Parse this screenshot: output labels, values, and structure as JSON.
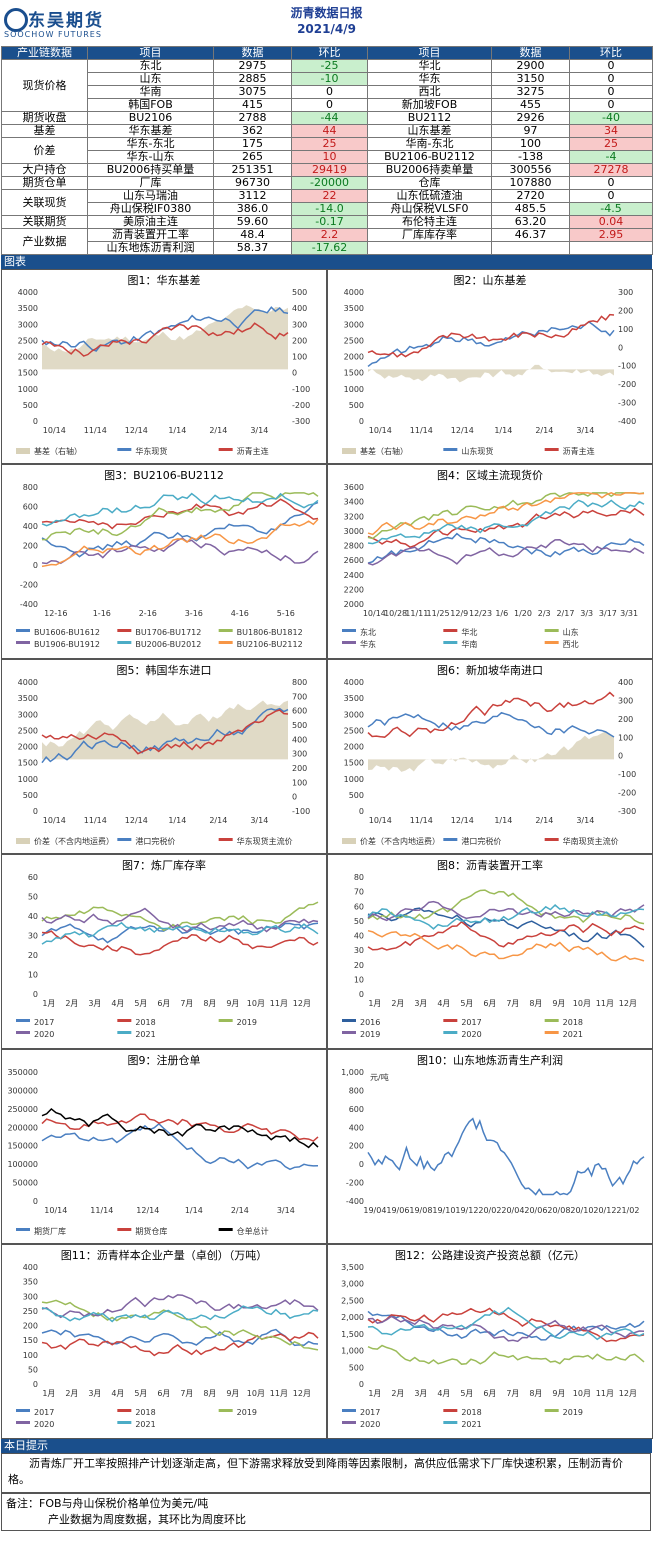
{
  "header": {
    "logo_cn": "东吴期货",
    "logo_en": "SOOCHOW FUTURES",
    "title": "沥青数据日报",
    "date": "2021/4/9"
  },
  "table": {
    "headers": [
      "产业链数据",
      "项目",
      "数据",
      "环比",
      "项目",
      "数据",
      "环比"
    ],
    "rows": [
      {
        "cat": "现货价格",
        "span": 4,
        "a": "东北",
        "b": "2975",
        "c": "-25",
        "cc": "g",
        "d": "华北",
        "e": "2900",
        "f": "0",
        "fc": ""
      },
      {
        "a": "山东",
        "b": "2885",
        "c": "-10",
        "cc": "g",
        "d": "华东",
        "e": "3150",
        "f": "0",
        "fc": ""
      },
      {
        "a": "华南",
        "b": "3075",
        "c": "0",
        "cc": "",
        "d": "西北",
        "e": "3275",
        "f": "0",
        "fc": ""
      },
      {
        "a": "韩国FOB",
        "b": "415",
        "c": "0",
        "cc": "",
        "d": "新加坡FOB",
        "e": "455",
        "f": "0",
        "fc": ""
      },
      {
        "cat": "期货收盘",
        "span": 1,
        "a": "BU2106",
        "b": "2788",
        "c": "-44",
        "cc": "g",
        "d": "BU2112",
        "e": "2926",
        "f": "-40",
        "fc": "g"
      },
      {
        "cat": "基差",
        "span": 1,
        "a": "华东基差",
        "b": "362",
        "c": "44",
        "cc": "r",
        "d": "山东基差",
        "e": "97",
        "f": "34",
        "fc": "r"
      },
      {
        "cat": "价差",
        "span": 2,
        "a": "华东-东北",
        "b": "175",
        "c": "25",
        "cc": "r",
        "d": "华南-东北",
        "e": "100",
        "f": "25",
        "fc": "r"
      },
      {
        "a": "华东-山东",
        "b": "265",
        "c": "10",
        "cc": "r",
        "d": "BU2106-BU2112",
        "e": "-138",
        "f": "-4",
        "fc": "g"
      },
      {
        "cat": "大户持仓",
        "span": 1,
        "a": "BU2006持买单量",
        "b": "251351",
        "c": "29419",
        "cc": "r",
        "d": "BU2006持卖单量",
        "e": "300556",
        "f": "27278",
        "fc": "r"
      },
      {
        "cat": "期货仓单",
        "span": 1,
        "a": "厂库",
        "b": "96730",
        "c": "-20000",
        "cc": "g",
        "d": "仓库",
        "e": "107880",
        "f": "0",
        "fc": ""
      },
      {
        "cat": "关联现货",
        "span": 2,
        "a": "山东马瑞油",
        "b": "3112",
        "c": "22",
        "cc": "r",
        "d": "山东低硫渣油",
        "e": "2720",
        "f": "0",
        "fc": ""
      },
      {
        "a": "舟山保税IF0380",
        "b": "386.0",
        "c": "-14.0",
        "cc": "g",
        "d": "舟山保税VLSF0",
        "e": "485.5",
        "f": "-4.5",
        "fc": "g"
      },
      {
        "cat": "关联期货",
        "span": 1,
        "a": "美原油主连",
        "b": "59.60",
        "c": "-0.17",
        "cc": "g",
        "d": "布伦特主连",
        "e": "63.20",
        "f": "0.04",
        "fc": "r"
      },
      {
        "cat": "产业数据",
        "span": 2,
        "a": "沥青装置开工率",
        "b": "48.4",
        "c": "2.2",
        "cc": "r",
        "d": "厂库库存率",
        "e": "46.37",
        "f": "2.95",
        "fc": "r"
      },
      {
        "a": "山东地炼沥青利润",
        "b": "58.37",
        "c": "-17.62",
        "cc": "g",
        "d": "",
        "e": "",
        "f": "",
        "fc": ""
      }
    ]
  },
  "charts_label": "图表",
  "charts": [
    {
      "title": "图1：华东基差",
      "type": "line",
      "xticks": [
        "10/14",
        "11/14",
        "12/14",
        "1/14",
        "2/14",
        "3/14"
      ],
      "yl": [
        "4000",
        "3500",
        "3000",
        "2500",
        "2000",
        "1500",
        "1000",
        "500",
        "0"
      ],
      "yr": [
        "500",
        "400",
        "300",
        "200",
        "100",
        "0",
        "-100",
        "-200",
        "-300"
      ],
      "legend": [
        {
          "name": "基差（右轴）",
          "color": "#d8d1b8"
        },
        {
          "name": "华东现货",
          "color": "#4a7fc1"
        },
        {
          "name": "沥青主连",
          "color": "#c9413c"
        }
      ]
    },
    {
      "title": "图2：山东基差",
      "type": "line",
      "xticks": [
        "10/14",
        "11/14",
        "12/14",
        "1/14",
        "2/14",
        "3/14"
      ],
      "yl": [
        "4000",
        "3500",
        "3000",
        "2500",
        "2000",
        "1500",
        "1000",
        "500",
        "0"
      ],
      "yr": [
        "300",
        "200",
        "100",
        "0",
        "-100",
        "-200",
        "-300",
        "-400"
      ],
      "legend": [
        {
          "name": "基差（右轴）",
          "color": "#d8d1b8"
        },
        {
          "name": "山东现货",
          "color": "#4a7fc1"
        },
        {
          "name": "沥青主连",
          "color": "#c9413c"
        }
      ]
    },
    {
      "title": "图3：BU2106-BU2112",
      "type": "line",
      "xticks": [
        "12-16",
        "1-16",
        "2-16",
        "3-16",
        "4-16",
        "5-16"
      ],
      "yl": [
        "800",
        "600",
        "400",
        "200",
        "0",
        "-200",
        "-400"
      ],
      "legend": [
        {
          "name": "BU1606-BU1612",
          "color": "#4a7fc1"
        },
        {
          "name": "BU1706-BU1712",
          "color": "#c9413c"
        },
        {
          "name": "BU1806-BU1812",
          "color": "#9bbb59"
        },
        {
          "name": "BU1906-BU1912",
          "color": "#8064a2"
        },
        {
          "name": "BU2006-BU2012",
          "color": "#4bacc6"
        },
        {
          "name": "BU2106-BU2112",
          "color": "#f79646"
        }
      ]
    },
    {
      "title": "图4：区域主流现货价",
      "type": "line",
      "xticks": [
        "10/14",
        "10/28",
        "11/11",
        "11/25",
        "12/9",
        "12/23",
        "1/6",
        "1/20",
        "2/3",
        "2/17",
        "3/3",
        "3/17",
        "3/31"
      ],
      "yl": [
        "3600",
        "3400",
        "3200",
        "3000",
        "2800",
        "2600",
        "2400",
        "2200",
        "2000"
      ],
      "legend": [
        {
          "name": "东北",
          "color": "#4a7fc1"
        },
        {
          "name": "华北",
          "color": "#c9413c"
        },
        {
          "name": "山东",
          "color": "#9bbb59"
        },
        {
          "name": "华东",
          "color": "#8064a2"
        },
        {
          "name": "华南",
          "color": "#4bacc6"
        },
        {
          "name": "西北",
          "color": "#f79646"
        }
      ]
    },
    {
      "title": "图5：韩国华东进口",
      "type": "line",
      "xticks": [
        "10/14",
        "11/14",
        "12/14",
        "1/14",
        "2/14",
        "3/14"
      ],
      "yl": [
        "4000",
        "3500",
        "3000",
        "2500",
        "2000",
        "1500",
        "1000",
        "500",
        "0"
      ],
      "yr": [
        "800",
        "700",
        "600",
        "500",
        "400",
        "300",
        "200",
        "100",
        "0",
        "-100"
      ],
      "legend": [
        {
          "name": "价差（不含内地运费）",
          "color": "#d8d1b8"
        },
        {
          "name": "港口完税价",
          "color": "#4a7fc1"
        },
        {
          "name": "华东现货主流价",
          "color": "#c9413c"
        }
      ]
    },
    {
      "title": "图6：新加坡华南进口",
      "type": "line",
      "xticks": [
        "10/14",
        "11/14",
        "12/14",
        "1/14",
        "2/14",
        "3/14"
      ],
      "yl": [
        "4000",
        "3500",
        "3000",
        "2500",
        "2000",
        "1500",
        "1000",
        "500",
        "0"
      ],
      "yr": [
        "400",
        "300",
        "200",
        "100",
        "0",
        "-100",
        "-200",
        "-300"
      ],
      "legend": [
        {
          "name": "价差（不含内地运费）",
          "color": "#d8d1b8"
        },
        {
          "name": "港口完税价",
          "color": "#4a7fc1"
        },
        {
          "name": "华南现货主流价",
          "color": "#c9413c"
        }
      ]
    },
    {
      "title": "图7：炼厂库存率",
      "type": "line",
      "xticks": [
        "1月",
        "2月",
        "3月",
        "4月",
        "5月",
        "6月",
        "7月",
        "8月",
        "9月",
        "10月",
        "11月",
        "12月"
      ],
      "yl": [
        "60",
        "50",
        "40",
        "30",
        "20",
        "10",
        "0"
      ],
      "legend": [
        {
          "name": "2017",
          "color": "#4a7fc1"
        },
        {
          "name": "2018",
          "color": "#c9413c"
        },
        {
          "name": "2019",
          "color": "#9bbb59"
        },
        {
          "name": "2020",
          "color": "#8064a2"
        },
        {
          "name": "2021",
          "color": "#4bacc6"
        }
      ]
    },
    {
      "title": "图8：沥青装置开工率",
      "type": "line",
      "xticks": [
        "1月",
        "2月",
        "3月",
        "4月",
        "5月",
        "6月",
        "7月",
        "8月",
        "9月",
        "10月",
        "11月",
        "12月"
      ],
      "yl": [
        "80",
        "70",
        "60",
        "50",
        "40",
        "30",
        "20",
        "10",
        "0"
      ],
      "legend": [
        {
          "name": "2016",
          "color": "#2e5f9e"
        },
        {
          "name": "2017",
          "color": "#c9413c"
        },
        {
          "name": "2018",
          "color": "#9bbb59"
        },
        {
          "name": "2019",
          "color": "#8064a2"
        },
        {
          "name": "2020",
          "color": "#4bacc6"
        },
        {
          "name": "2021",
          "color": "#f79646"
        }
      ]
    },
    {
      "title": "图9：注册仓单",
      "type": "line",
      "xticks": [
        "10/14",
        "11/14",
        "12/14",
        "1/14",
        "2/14",
        "3/14"
      ],
      "yl": [
        "350000",
        "300000",
        "250000",
        "200000",
        "150000",
        "100000",
        "50000",
        "0"
      ],
      "legend": [
        {
          "name": "期货厂库",
          "color": "#4a7fc1"
        },
        {
          "name": "期货仓库",
          "color": "#c9413c"
        },
        {
          "name": "仓单总计",
          "color": "#000000"
        }
      ]
    },
    {
      "title": "图10：山东地炼沥青生产利润",
      "type": "line",
      "unit": "元/吨",
      "xticks": [
        "19/04",
        "19/06",
        "19/08",
        "19/10",
        "19/12",
        "20/02",
        "20/04",
        "20/06",
        "20/08",
        "20/10",
        "20/12",
        "21/02"
      ],
      "yl": [
        "1,000",
        "800",
        "600",
        "400",
        "200",
        "0",
        "-200",
        "-400"
      ],
      "legend": []
    },
    {
      "title": "图11：沥青样本企业产量（卓创）（万吨）",
      "type": "line",
      "xticks": [
        "1月",
        "2月",
        "3月",
        "4月",
        "5月",
        "6月",
        "7月",
        "8月",
        "9月",
        "10月",
        "11月",
        "12月"
      ],
      "yl": [
        "400",
        "350",
        "300",
        "250",
        "200",
        "150",
        "100",
        "50",
        "0"
      ],
      "legend": [
        {
          "name": "2017",
          "color": "#4a7fc1"
        },
        {
          "name": "2018",
          "color": "#c9413c"
        },
        {
          "name": "2019",
          "color": "#9bbb59"
        },
        {
          "name": "2020",
          "color": "#8064a2"
        },
        {
          "name": "2021",
          "color": "#4bacc6"
        }
      ]
    },
    {
      "title": "图12：公路建设资产投资总额（亿元）",
      "type": "line",
      "xticks": [
        "1月",
        "2月",
        "3月",
        "4月",
        "5月",
        "6月",
        "7月",
        "8月",
        "9月",
        "10月",
        "11月",
        "12月"
      ],
      "yl": [
        "3,500",
        "3,000",
        "2,500",
        "2,000",
        "1,500",
        "1,000",
        "500",
        "0"
      ],
      "legend": [
        {
          "name": "2017",
          "color": "#4a7fc1"
        },
        {
          "name": "2018",
          "color": "#c9413c"
        },
        {
          "name": "2019",
          "color": "#9bbb59"
        },
        {
          "name": "2020",
          "color": "#8064a2"
        },
        {
          "name": "2021",
          "color": "#4bacc6"
        }
      ]
    }
  ],
  "tips": {
    "label": "本日提示",
    "text": "沥青炼厂开工率按照排产计划逐渐走高，但下游需求释放受到降雨等因素限制，高供应低需求下厂库快速积累，压制沥青价格。"
  },
  "notes": {
    "line1": "备注：FOB与舟山保税价格单位为美元/吨",
    "line2": "产业数据为周度数据，其环比为周度环比"
  }
}
